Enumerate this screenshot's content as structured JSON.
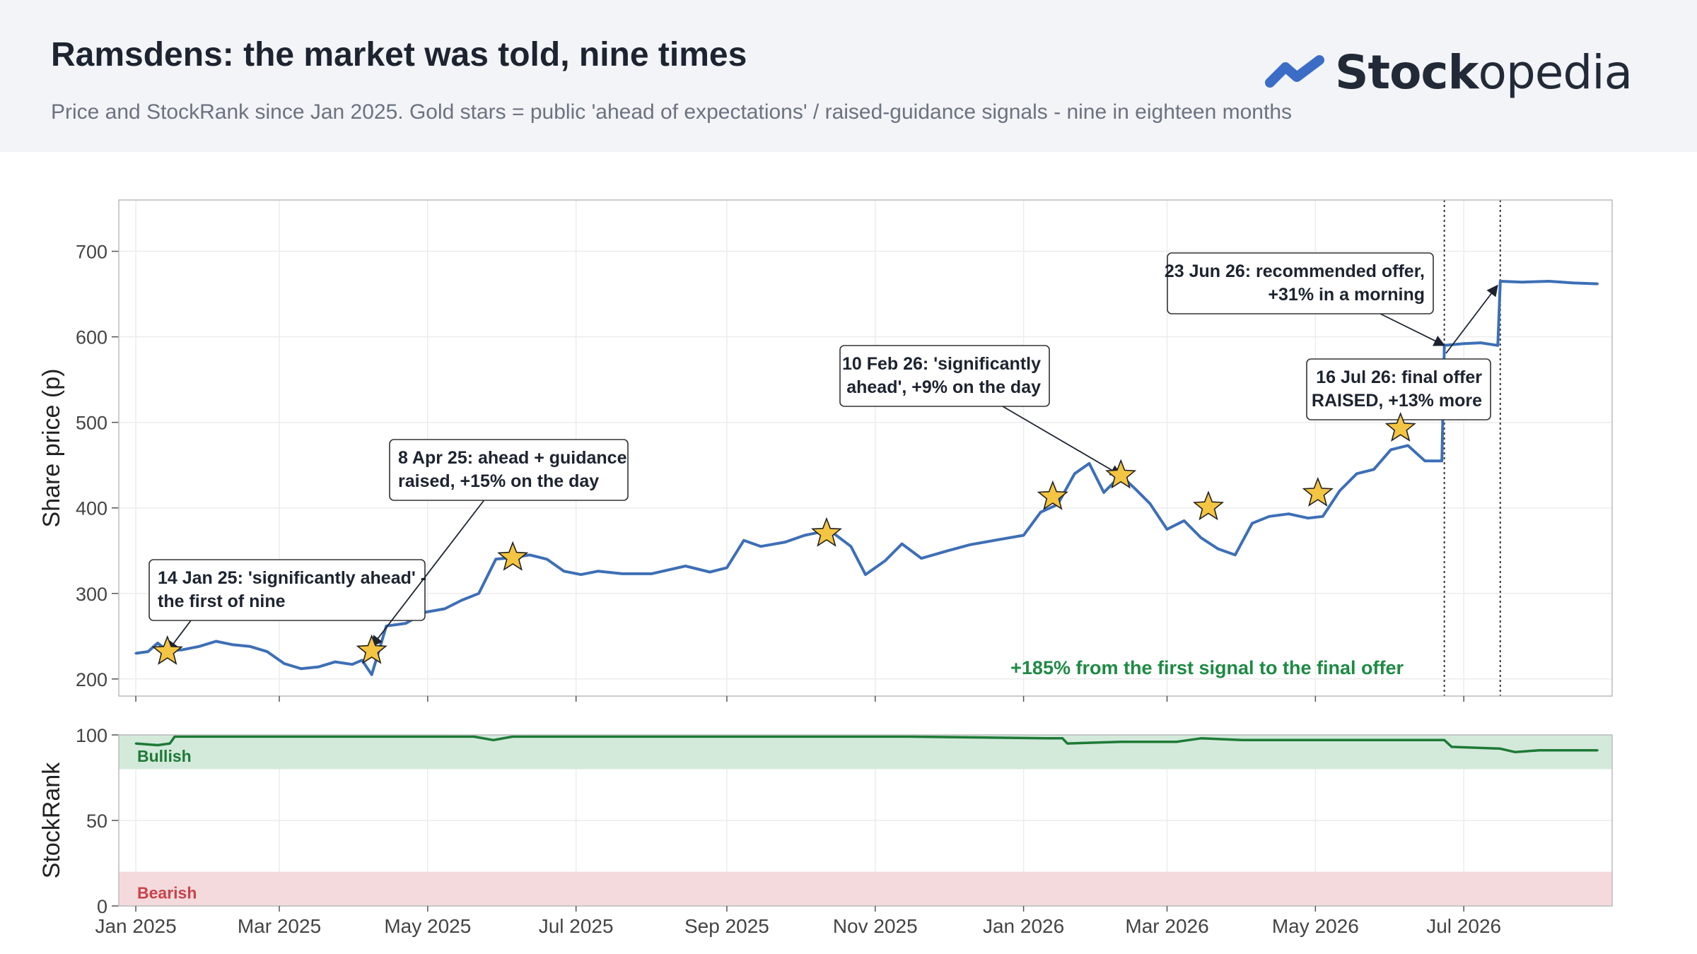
{
  "header": {
    "title": "Ramsdens: the market was told, nine times",
    "subtitle": "Price and StockRank since Jan 2025. Gold stars = public 'ahead of expectations' / raised-guidance signals - nine in eighteen months",
    "brand_bold": "Stock",
    "brand_light": "opedia",
    "logo_icon": "stockopedia-logo-icon",
    "brand_color": "#3b6dc6"
  },
  "chart_data": [
    {
      "type": "line",
      "ylabel": "Share price (p)",
      "ylim": [
        180,
        760
      ],
      "y_ticks": [
        "200",
        "300",
        "400",
        "500",
        "600",
        "700"
      ],
      "x_ticks": [
        "Jan 2025",
        "Mar 2025",
        "May 2025",
        "Jul 2025",
        "Sep 2025",
        "Nov 2025",
        "Jan 2026",
        "Mar 2026",
        "May 2026",
        "Jul 2026"
      ],
      "x_tick_dates": [
        "2025-01-01",
        "2025-03-01",
        "2025-05-01",
        "2025-07-01",
        "2025-09-01",
        "2025-11-01",
        "2026-01-01",
        "2026-03-01",
        "2026-05-01",
        "2026-07-01"
      ],
      "xlim": [
        "2024-12-25",
        "2026-08-31"
      ],
      "grid": true,
      "line_color": "#3d6fb6",
      "series": [
        {
          "x": [
            "2025-01-01",
            "2025-01-06",
            "2025-01-10",
            "2025-01-14",
            "2025-01-20",
            "2025-01-27",
            "2025-02-03",
            "2025-02-10",
            "2025-02-17",
            "2025-02-24",
            "2025-03-03",
            "2025-03-10",
            "2025-03-17",
            "2025-03-24",
            "2025-03-31",
            "2025-04-04",
            "2025-04-08",
            "2025-04-14",
            "2025-04-22",
            "2025-04-30",
            "2025-05-08",
            "2025-05-15",
            "2025-05-22",
            "2025-05-29",
            "2025-06-05",
            "2025-06-12",
            "2025-06-19",
            "2025-06-26",
            "2025-07-03",
            "2025-07-10",
            "2025-07-20",
            "2025-08-01",
            "2025-08-15",
            "2025-08-25",
            "2025-09-01",
            "2025-09-08",
            "2025-09-15",
            "2025-09-25",
            "2025-10-03",
            "2025-10-10",
            "2025-10-15",
            "2025-10-22",
            "2025-10-28",
            "2025-11-05",
            "2025-11-12",
            "2025-11-20",
            "2025-12-01",
            "2025-12-10",
            "2025-12-20",
            "2026-01-01",
            "2026-01-08",
            "2026-01-15",
            "2026-01-22",
            "2026-01-28",
            "2026-02-03",
            "2026-02-10",
            "2026-02-16",
            "2026-02-22",
            "2026-03-01",
            "2026-03-08",
            "2026-03-15",
            "2026-03-22",
            "2026-03-29",
            "2026-04-05",
            "2026-04-12",
            "2026-04-20",
            "2026-04-28",
            "2026-05-04",
            "2026-05-11",
            "2026-05-18",
            "2026-05-25",
            "2026-06-01",
            "2026-06-08",
            "2026-06-15",
            "2026-06-22",
            "2026-06-23",
            "2026-07-01",
            "2026-07-08",
            "2026-07-15",
            "2026-07-16",
            "2026-07-25",
            "2026-08-05",
            "2026-08-15",
            "2026-08-25"
          ],
          "y": [
            230,
            232,
            242,
            233,
            234,
            238,
            244,
            240,
            238,
            232,
            218,
            212,
            214,
            220,
            217,
            222,
            205,
            262,
            265,
            278,
            282,
            292,
            300,
            340,
            342,
            345,
            340,
            326,
            322,
            326,
            323,
            323,
            332,
            325,
            330,
            362,
            355,
            360,
            368,
            372,
            370,
            355,
            322,
            338,
            358,
            341,
            350,
            357,
            362,
            368,
            395,
            404,
            440,
            452,
            418,
            438,
            422,
            405,
            375,
            385,
            365,
            352,
            345,
            382,
            390,
            393,
            388,
            390,
            420,
            440,
            445,
            468,
            473,
            455,
            455,
            590,
            592,
            593,
            590,
            665,
            664,
            665,
            663,
            662
          ]
        }
      ],
      "signals": [
        {
          "date": "2025-01-14",
          "value": 232
        },
        {
          "date": "2025-04-08",
          "value": 233
        },
        {
          "date": "2025-06-05",
          "value": 342
        },
        {
          "date": "2025-10-12",
          "value": 370
        },
        {
          "date": "2026-01-13",
          "value": 413
        },
        {
          "date": "2026-02-10",
          "value": 438
        },
        {
          "date": "2026-03-18",
          "value": 401
        },
        {
          "date": "2026-05-02",
          "value": 417
        },
        {
          "date": "2026-06-05",
          "value": 493
        }
      ],
      "signal_color": "#f4c542",
      "event_lines": [
        "2026-06-23",
        "2026-07-16"
      ],
      "annotations": [
        {
          "text": [
            "14 Jan 25: 'significantly ahead' -",
            "the first of nine"
          ],
          "target_date": "2025-01-14",
          "target_value": 232
        },
        {
          "text": [
            "8 Apr 25: ahead + guidance",
            "raised, +15% on the day"
          ],
          "target_date": "2025-04-08",
          "target_value": 238
        },
        {
          "text": [
            "10 Feb 26: 'significantly",
            "ahead', +9% on the day"
          ],
          "target_date": "2026-02-10",
          "target_value": 438
        },
        {
          "text": [
            "23 Jun 26: recommended offer,",
            "+31% in a morning"
          ],
          "target_date": "2026-06-23",
          "target_value": 590
        },
        {
          "text": [
            "16 Jul 26: final offer",
            "RAISED, +13% more"
          ],
          "target_date": "2026-07-16",
          "target_value": 665
        }
      ],
      "callout": "+185% from the first signal to the final offer",
      "callout_color": "#1e8a44"
    },
    {
      "type": "line",
      "ylabel": "StockRank",
      "ylim": [
        0,
        100
      ],
      "y_ticks": [
        "0",
        "50",
        "100"
      ],
      "line_color": "#1e7a36",
      "bands": [
        {
          "label": "Bullish",
          "from": 80,
          "to": 100,
          "color": "#d3eadb",
          "label_color": "#1e7a36"
        },
        {
          "label": "Bearish",
          "from": 0,
          "to": 20,
          "color": "#f5dadd",
          "label_color": "#c8434b"
        }
      ],
      "series": [
        {
          "x": [
            "2025-01-01",
            "2025-01-10",
            "2025-01-15",
            "2025-01-17",
            "2025-02-15",
            "2025-04-01",
            "2025-05-20",
            "2025-05-28",
            "2025-06-05",
            "2025-08-01",
            "2025-10-01",
            "2025-11-15",
            "2026-01-10",
            "2026-01-17",
            "2026-01-19",
            "2026-02-10",
            "2026-03-05",
            "2026-03-15",
            "2026-04-01",
            "2026-05-01",
            "2026-06-01",
            "2026-06-23",
            "2026-06-26",
            "2026-07-16",
            "2026-07-22",
            "2026-08-01",
            "2026-08-25"
          ],
          "y": [
            95,
            94,
            95,
            99,
            99,
            99,
            99,
            97,
            99,
            99,
            99,
            99,
            98,
            98,
            95,
            96,
            96,
            98,
            97,
            97,
            97,
            97,
            93,
            92,
            90,
            91,
            91
          ]
        }
      ]
    }
  ]
}
